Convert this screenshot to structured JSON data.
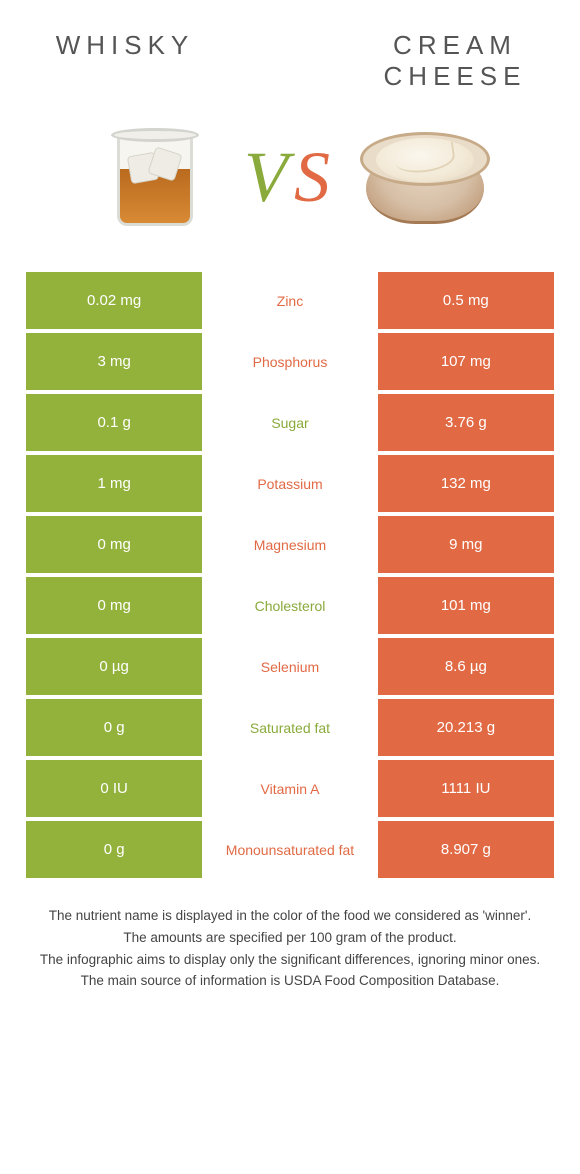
{
  "colors": {
    "left": "#93b23c",
    "right": "#e16a45",
    "left_label": "#8aaa3b",
    "right_label": "#e16a45",
    "row_gap": "#ffffff",
    "text_on_color": "#ffffff"
  },
  "header": {
    "left_title": "WHISKY",
    "right_title": "CREAM CHEESE",
    "vs_v": "V",
    "vs_s": "S"
  },
  "table": {
    "rows": [
      {
        "left": "0.02 mg",
        "label": "Zinc",
        "right": "0.5 mg",
        "winner": "right"
      },
      {
        "left": "3 mg",
        "label": "Phosphorus",
        "right": "107 mg",
        "winner": "right"
      },
      {
        "left": "0.1 g",
        "label": "Sugar",
        "right": "3.76 g",
        "winner": "left"
      },
      {
        "left": "1 mg",
        "label": "Potassium",
        "right": "132 mg",
        "winner": "right"
      },
      {
        "left": "0 mg",
        "label": "Magnesium",
        "right": "9 mg",
        "winner": "right"
      },
      {
        "left": "0 mg",
        "label": "Cholesterol",
        "right": "101 mg",
        "winner": "left"
      },
      {
        "left": "0 µg",
        "label": "Selenium",
        "right": "8.6 µg",
        "winner": "right"
      },
      {
        "left": "0 g",
        "label": "Saturated fat",
        "right": "20.213 g",
        "winner": "left"
      },
      {
        "left": "0 IU",
        "label": "Vitamin A",
        "right": "1111 IU",
        "winner": "right"
      },
      {
        "left": "0 g",
        "label": "Monounsaturated fat",
        "right": "8.907 g",
        "winner": "right"
      }
    ]
  },
  "footnotes": [
    "The nutrient name is displayed in the color of the food we considered as 'winner'.",
    "The amounts are specified per 100 gram of the product.",
    "The infographic aims to display only the significant differences, ignoring minor ones.",
    "The main source of information is USDA Food Composition Database."
  ]
}
